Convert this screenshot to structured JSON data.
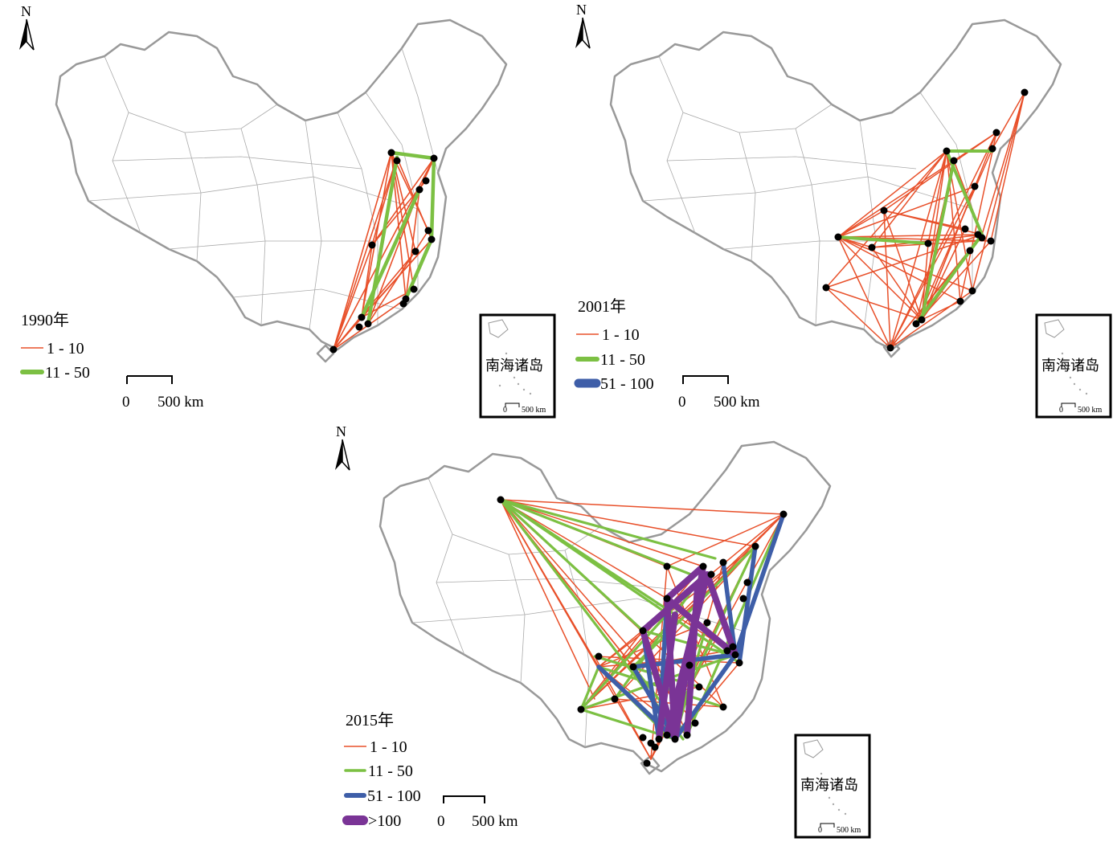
{
  "north_label": "N",
  "scale_bar": {
    "start": "0",
    "end": "500 km"
  },
  "inset": {
    "title": "南海诸岛",
    "scale_start": "0",
    "scale_end": "500 km"
  },
  "legend_classes": [
    {
      "label": "1 - 10",
      "color": "#e8502a"
    },
    {
      "label": "11 - 50",
      "color": "#7cc043"
    },
    {
      "label": "51 - 100",
      "color": "#3e5ea8"
    },
    {
      "label": ">100",
      "color": "#7a3496"
    }
  ],
  "maps": [
    {
      "year": "1990年",
      "classes": 2
    },
    {
      "year": "2001年",
      "classes": 3
    },
    {
      "year": "2015年",
      "classes": 4
    }
  ]
}
